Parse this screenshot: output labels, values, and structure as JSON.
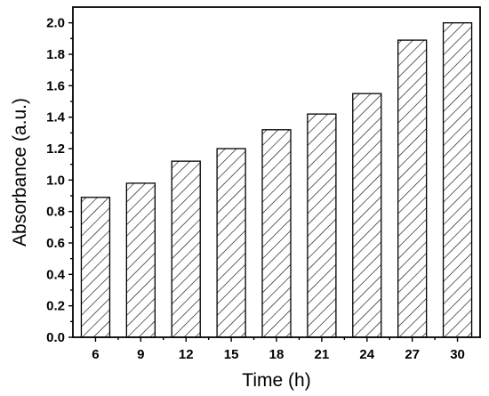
{
  "chart_data": {
    "type": "bar",
    "categories": [
      "6",
      "9",
      "12",
      "15",
      "18",
      "21",
      "24",
      "27",
      "30"
    ],
    "values": [
      0.89,
      0.98,
      1.12,
      1.2,
      1.32,
      1.42,
      1.55,
      1.89,
      2.0
    ],
    "xlabel": "Time (h)",
    "ylabel": "Absorbance (a.u.)",
    "ylim": [
      0.0,
      2.1
    ],
    "yticks": [
      "0.0",
      "0.2",
      "0.4",
      "0.6",
      "0.8",
      "1.0",
      "1.2",
      "1.4",
      "1.6",
      "1.8",
      "2.0"
    ],
    "bar_fill": "hatched-diagonal",
    "grid": false,
    "legend": "none",
    "colors": {
      "bar_stroke": "#000000",
      "background": "#ffffff"
    }
  }
}
